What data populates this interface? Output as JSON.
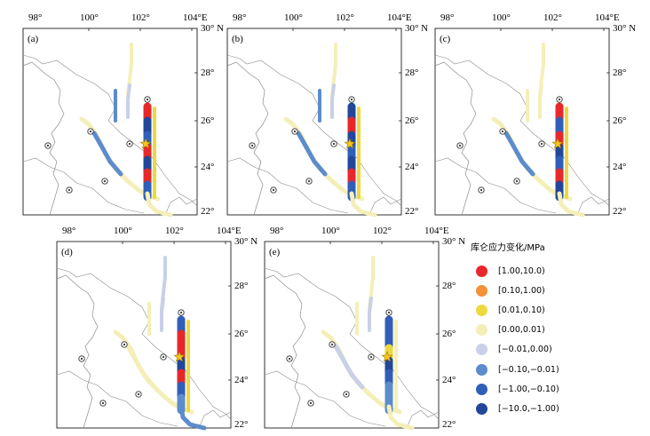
{
  "axes": {
    "x_ticks": [
      "98°",
      "100°",
      "102°",
      "104°E"
    ],
    "y_ticks": [
      "30° N",
      "28°",
      "26°",
      "24°",
      "22°"
    ]
  },
  "panels": [
    {
      "label": "(a)"
    },
    {
      "label": "(b)"
    },
    {
      "label": "(c)"
    },
    {
      "label": "(d)"
    },
    {
      "label": "(e)"
    }
  ],
  "legend": {
    "title": "库仑应力变化/MPa",
    "items": [
      {
        "label": "[1.00,10.0)",
        "color": "#e8272a"
      },
      {
        "label": "[0.10,1.00)",
        "color": "#f4923a"
      },
      {
        "label": "[0.01,0.10)",
        "color": "#ecd940"
      },
      {
        "label": "[0.00,0.01)",
        "color": "#f4efb8"
      },
      {
        "label": "[−0.01,0.00)",
        "color": "#c9d0e8"
      },
      {
        "label": "[−0.10,−0.01)",
        "color": "#5c8ccc"
      },
      {
        "label": "[−1.00,−0.10)",
        "color": "#2f5fb8"
      },
      {
        "label": "[−10.0,−1.00)",
        "color": "#22479a"
      }
    ]
  }
}
